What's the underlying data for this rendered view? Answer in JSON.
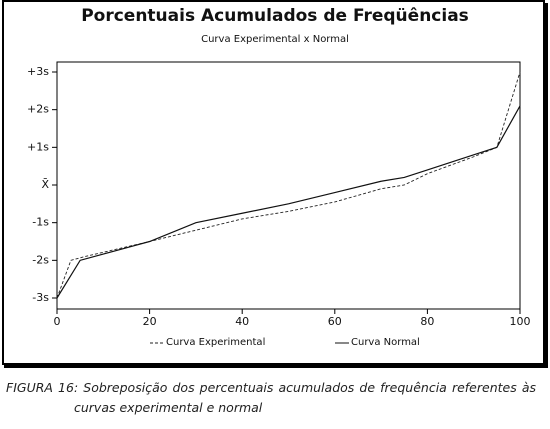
{
  "chart_data": {
    "type": "line",
    "title": "Porcentuais Acumulados de Freqüências",
    "subtitle": "Curva Experimental x Normal",
    "xlim": [
      0,
      100
    ],
    "xticks": [
      0,
      20,
      40,
      60,
      80,
      100
    ],
    "ylim": [
      -3,
      3
    ],
    "yticks": [
      {
        "value": 3,
        "label": "+3s"
      },
      {
        "value": 2,
        "label": "+2s"
      },
      {
        "value": 1,
        "label": "+1s"
      },
      {
        "value": 0,
        "label": "X̄"
      },
      {
        "value": -1,
        "label": "-1s"
      },
      {
        "value": -2,
        "label": "-2s"
      },
      {
        "value": -3,
        "label": "-3s"
      }
    ],
    "grid": false,
    "series": [
      {
        "name": "Curva Experimental",
        "color": "#222222",
        "style": "dashed",
        "x": [
          0,
          3,
          6,
          20,
          30,
          40,
          50,
          60,
          70,
          75,
          80,
          90,
          95,
          100
        ],
        "values": [
          -3,
          -2,
          -1.9,
          -1.5,
          -1.2,
          -0.9,
          -0.7,
          -0.45,
          -0.1,
          0,
          0.3,
          0.75,
          1,
          3
        ]
      },
      {
        "name": "Curva Normal",
        "color": "#111111",
        "style": "solid",
        "x": [
          0,
          5,
          20,
          30,
          40,
          50,
          60,
          70,
          75,
          80,
          90,
          95,
          100
        ],
        "values": [
          -3,
          -2,
          -1.5,
          -1,
          -0.75,
          -0.5,
          -0.2,
          0.1,
          0.2,
          0.4,
          0.8,
          1,
          2.1
        ]
      }
    ]
  },
  "caption": "FIGURA 16: Sobreposição dos percentuais acumulados de frequência referentes às curvas experimental e normal"
}
